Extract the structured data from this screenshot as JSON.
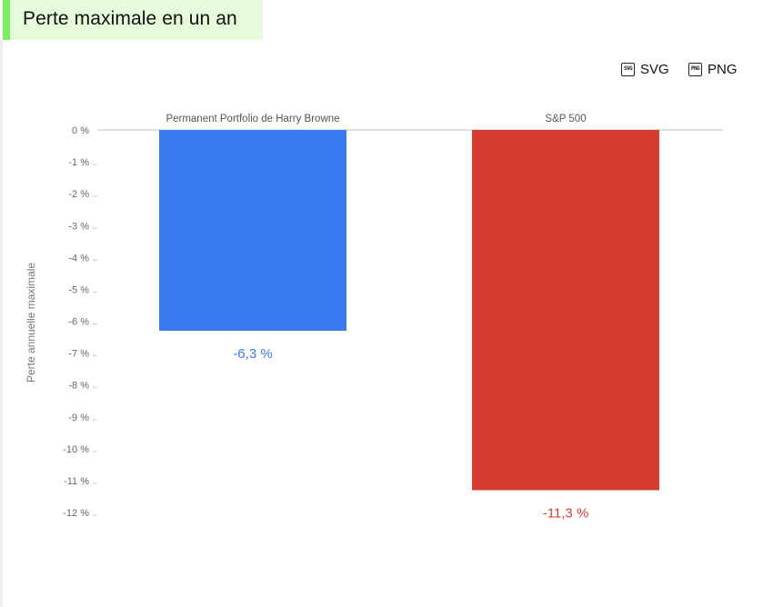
{
  "title": "Perte maximale en un an",
  "export": {
    "svg_label": "SVG",
    "png_label": "PNG",
    "svg_icon": "svg-file-icon",
    "svg_icon_text": "SVG",
    "png_icon": "png-file-icon",
    "png_icon_text": "PNG"
  },
  "chart_data": {
    "type": "bar",
    "categories": [
      "Permanent Portfolio de Harry Browne",
      "S&P 500"
    ],
    "values": [
      -6.3,
      -11.3
    ],
    "value_labels": [
      "-6,3 %",
      "-11,3 %"
    ],
    "colors": [
      "#3a7af1",
      "#d63b30"
    ],
    "ylabel": "Perte annuelle maximale",
    "ylim": [
      -12,
      0
    ],
    "yticks": [
      0,
      -1,
      -2,
      -3,
      -4,
      -5,
      -6,
      -7,
      -8,
      -9,
      -10,
      -11,
      -12
    ],
    "ytick_labels": [
      "0 %",
      "-1 %",
      "-2 %",
      "-3 %",
      "-4 %",
      "-5 %",
      "-6 %",
      "-7 %",
      "-8 %",
      "-9 %",
      "-10 %",
      "-11 %",
      "-12 %"
    ],
    "grid": false,
    "category_labels_position": "top"
  }
}
